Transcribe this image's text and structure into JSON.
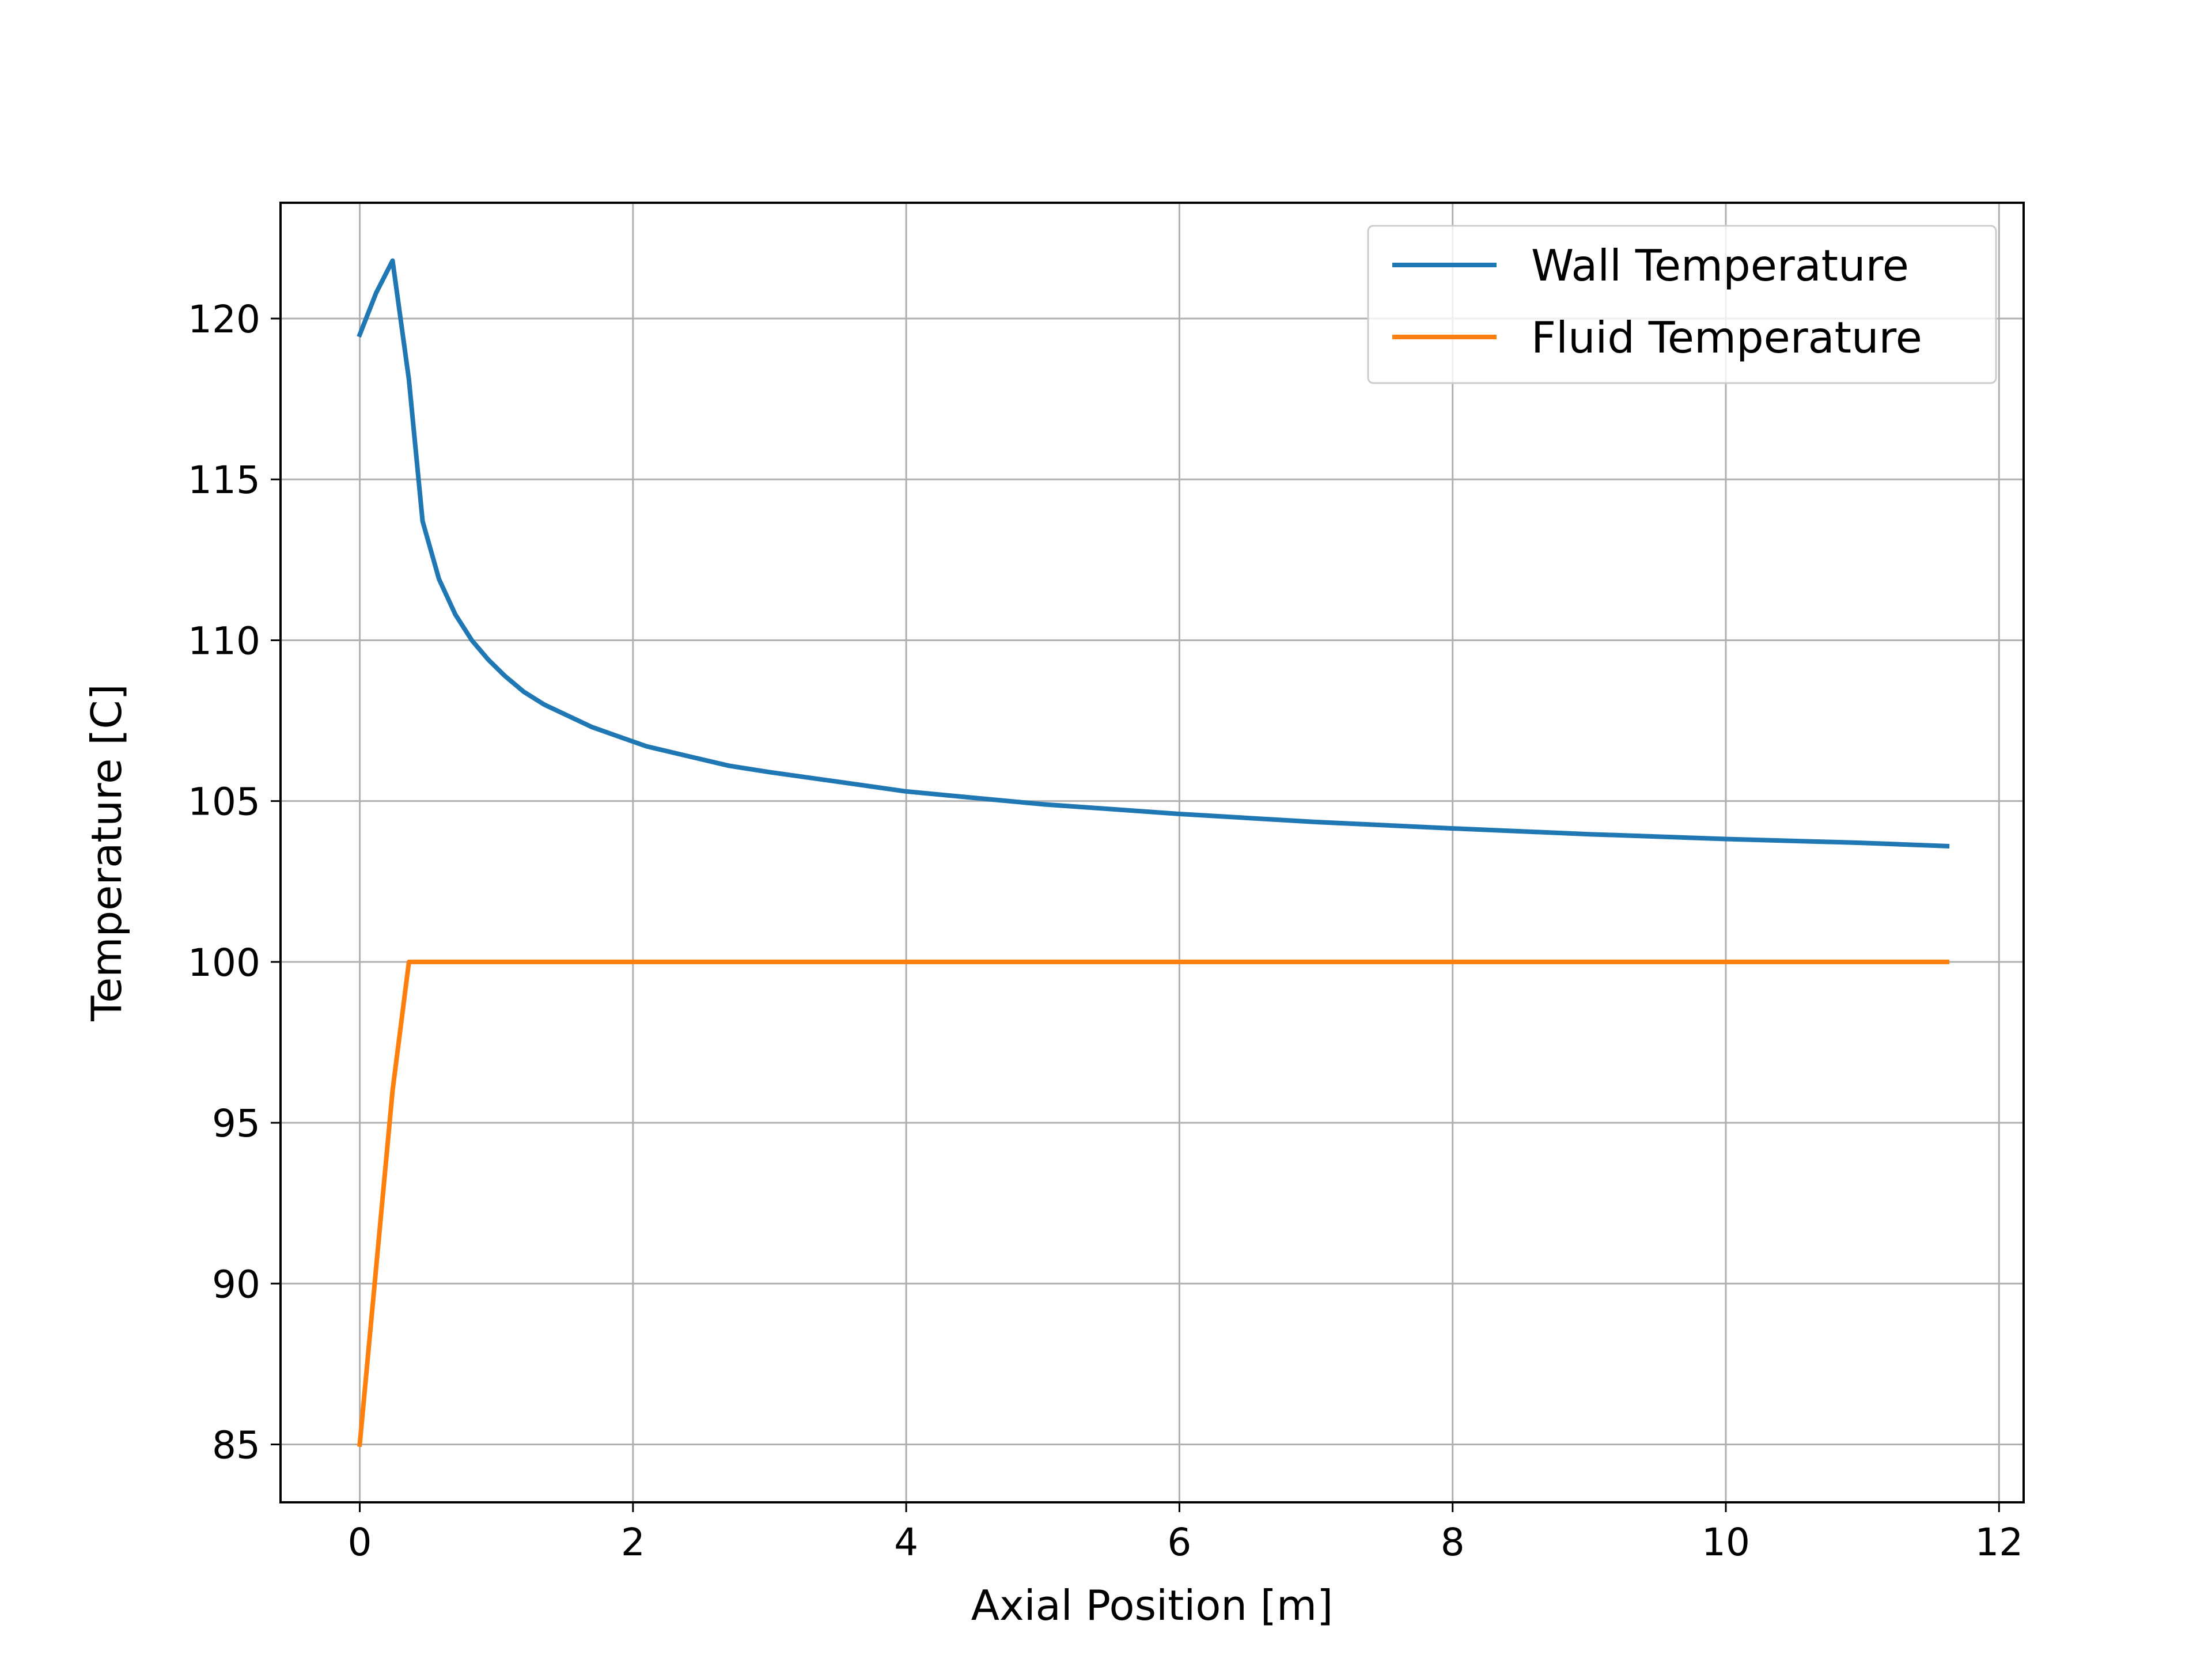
{
  "chart_data": {
    "type": "line",
    "xlabel": "Axial Position  [m]",
    "ylabel": "Temperature  [C]",
    "xlim": [
      -0.58,
      12.18
    ],
    "ylim": [
      83.2,
      123.6
    ],
    "xticks": [
      0,
      2,
      4,
      6,
      8,
      10,
      12
    ],
    "yticks": [
      85,
      90,
      95,
      100,
      105,
      110,
      115,
      120
    ],
    "grid": true,
    "legend_position": "top-right",
    "series": [
      {
        "name": "Wall Temperature",
        "color": "#1f77b4",
        "x": [
          0.0,
          0.12,
          0.24,
          0.36,
          0.46,
          0.58,
          0.7,
          0.82,
          0.94,
          1.06,
          1.2,
          1.35,
          1.5,
          1.7,
          1.9,
          2.1,
          2.4,
          2.7,
          3.0,
          3.5,
          4.0,
          4.5,
          5.0,
          6.0,
          7.0,
          8.0,
          9.0,
          10.0,
          11.0,
          11.62
        ],
        "y": [
          119.5,
          120.8,
          121.8,
          118.1,
          113.7,
          111.9,
          110.8,
          110.0,
          109.4,
          108.9,
          108.4,
          108.0,
          107.7,
          107.3,
          107.0,
          106.7,
          106.4,
          106.1,
          105.9,
          105.6,
          105.3,
          105.1,
          104.9,
          104.6,
          104.35,
          104.15,
          103.97,
          103.82,
          103.7,
          103.6
        ]
      },
      {
        "name": "Fluid Temperature",
        "color": "#ff7f0e",
        "x": [
          0.0,
          0.12,
          0.24,
          0.36,
          11.62
        ],
        "y": [
          85.0,
          90.5,
          96.0,
          100.0,
          100.0
        ]
      }
    ]
  }
}
